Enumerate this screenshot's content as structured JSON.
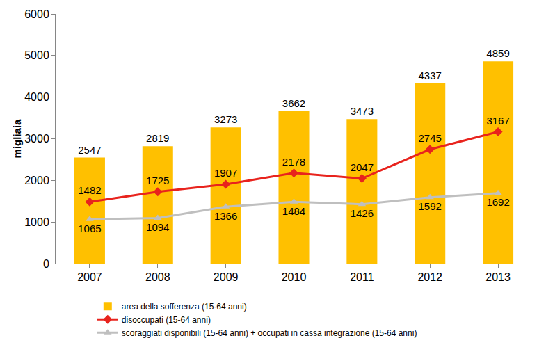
{
  "chart_data": {
    "type": "bar",
    "categories": [
      "2007",
      "2008",
      "2009",
      "2010",
      "2011",
      "2012",
      "2013"
    ],
    "series": [
      {
        "name": "area della sofferenza (15-64 anni)",
        "type": "bar",
        "color": "#FFC000",
        "values": [
          2547,
          2819,
          3273,
          3662,
          3473,
          4337,
          4859
        ]
      },
      {
        "name": "disoccupati (15-64 anni)",
        "type": "line",
        "color": "#E8231D",
        "marker": "diamond",
        "values": [
          1482,
          1725,
          1907,
          2178,
          2047,
          2745,
          3167
        ]
      },
      {
        "name": "scoraggiati disponibili (15-64 anni) + occupati in cassa integrazione (15-64 anni)",
        "type": "line",
        "color": "#BFBFBF",
        "marker": "triangle-up",
        "values": [
          1065,
          1094,
          1366,
          1484,
          1426,
          1592,
          1692
        ]
      }
    ],
    "y_label": "migliaia",
    "ylim": [
      0,
      6000
    ],
    "yticks": [
      0,
      1000,
      2000,
      3000,
      4000,
      5000,
      6000
    ],
    "grid": false,
    "legend": "bottom",
    "data_labels": true
  }
}
